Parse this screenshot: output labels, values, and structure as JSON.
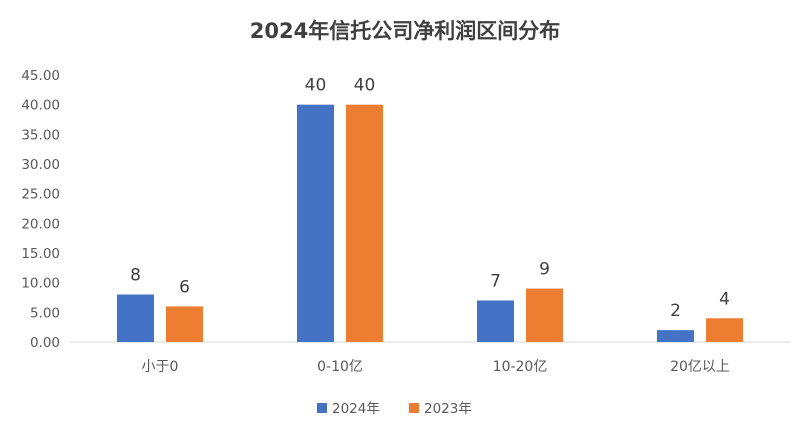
{
  "chart_data": {
    "type": "bar",
    "title": "2024年信托公司净利润区间分布",
    "categories": [
      "小于0",
      "0-10亿",
      "10-20亿",
      "20亿以上"
    ],
    "series": [
      {
        "name": "2024年",
        "values": [
          8,
          40,
          7,
          2
        ],
        "color": "#4472C4"
      },
      {
        "name": "2023年",
        "values": [
          6,
          40,
          9,
          4
        ],
        "color": "#ED7D31"
      }
    ],
    "ylim": [
      0,
      45
    ],
    "yticks": [
      "0.00",
      "5.00",
      "10.00",
      "15.00",
      "20.00",
      "25.00",
      "30.00",
      "35.00",
      "40.00",
      "45.00"
    ],
    "grid": false,
    "legend": "bottom",
    "data_labels": true
  }
}
